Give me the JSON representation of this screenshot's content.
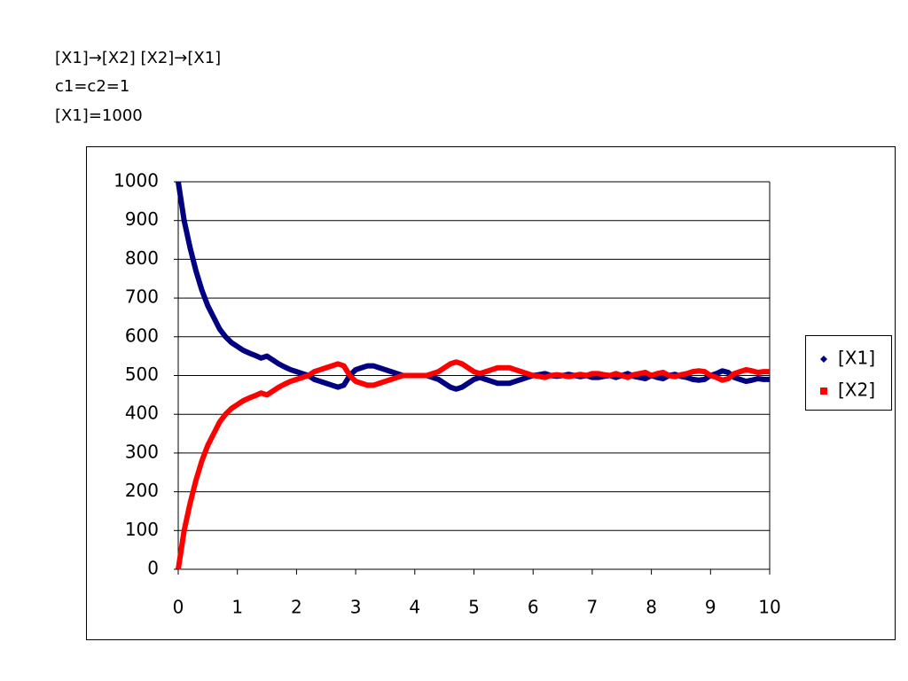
{
  "chart_data": {
    "type": "line",
    "annotations": [
      "[X1]→[X2] [X2]→[X1]",
      "c1=c2=1",
      "[X1]=1000"
    ],
    "x": [
      0,
      0.1,
      0.2,
      0.3,
      0.4,
      0.5,
      0.6,
      0.7,
      0.8,
      0.9,
      1,
      1.1,
      1.2,
      1.3,
      1.4,
      1.5,
      1.6,
      1.7,
      1.8,
      1.9,
      2,
      2.1,
      2.2,
      2.3,
      2.4,
      2.5,
      2.6,
      2.7,
      2.8,
      2.9,
      3,
      3.1,
      3.2,
      3.3,
      3.4,
      3.5,
      3.6,
      3.7,
      3.8,
      3.9,
      4,
      4.1,
      4.2,
      4.3,
      4.4,
      4.5,
      4.6,
      4.7,
      4.8,
      4.9,
      5,
      5.1,
      5.2,
      5.3,
      5.4,
      5.5,
      5.6,
      5.7,
      5.8,
      5.9,
      6,
      6.1,
      6.2,
      6.3,
      6.4,
      6.5,
      6.6,
      6.7,
      6.8,
      6.9,
      7,
      7.1,
      7.2,
      7.3,
      7.4,
      7.5,
      7.6,
      7.7,
      7.8,
      7.9,
      8,
      8.1,
      8.2,
      8.3,
      8.4,
      8.5,
      8.6,
      8.7,
      8.8,
      8.9,
      9,
      9.1,
      9.2,
      9.3,
      9.4,
      9.5,
      9.6,
      9.7,
      9.8,
      9.9,
      10
    ],
    "series": [
      {
        "name": "[X1]",
        "color": "#000080",
        "marker": "diamond",
        "values": [
          1000,
          900,
          830,
          770,
          720,
          680,
          650,
          620,
          600,
          585,
          575,
          565,
          558,
          552,
          545,
          550,
          540,
          530,
          522,
          515,
          510,
          505,
          500,
          490,
          485,
          480,
          475,
          470,
          475,
          500,
          515,
          520,
          525,
          525,
          520,
          515,
          510,
          505,
          500,
          500,
          500,
          500,
          500,
          495,
          490,
          480,
          470,
          465,
          470,
          480,
          490,
          495,
          490,
          485,
          480,
          480,
          480,
          485,
          490,
          495,
          500,
          502,
          505,
          500,
          498,
          500,
          503,
          500,
          497,
          500,
          495,
          495,
          498,
          500,
          495,
          500,
          505,
          498,
          495,
          492,
          500,
          495,
          492,
          500,
          503,
          498,
          495,
          490,
          488,
          490,
          500,
          505,
          512,
          508,
          495,
          490,
          485,
          488,
          492,
          490,
          490
        ]
      },
      {
        "name": "[X2]",
        "color": "#ff0000",
        "marker": "square",
        "values": [
          0,
          100,
          170,
          230,
          280,
          320,
          350,
          380,
          400,
          415,
          425,
          435,
          442,
          448,
          455,
          450,
          460,
          470,
          478,
          485,
          490,
          495,
          500,
          510,
          515,
          520,
          525,
          530,
          525,
          500,
          485,
          480,
          475,
          475,
          480,
          485,
          490,
          495,
          500,
          500,
          500,
          500,
          500,
          505,
          510,
          520,
          530,
          535,
          530,
          520,
          510,
          505,
          510,
          515,
          520,
          520,
          520,
          515,
          510,
          505,
          500,
          498,
          495,
          500,
          502,
          500,
          497,
          500,
          503,
          500,
          505,
          505,
          502,
          500,
          505,
          500,
          495,
          502,
          505,
          508,
          500,
          505,
          508,
          500,
          497,
          502,
          505,
          510,
          512,
          510,
          500,
          495,
          488,
          492,
          505,
          510,
          515,
          512,
          508,
          510,
          510
        ]
      }
    ],
    "xlim": [
      0,
      10
    ],
    "xticks": [
      0,
      1,
      2,
      3,
      4,
      5,
      6,
      7,
      8,
      9,
      10
    ],
    "ylim": [
      0,
      1000
    ],
    "yticks": [
      0,
      100,
      200,
      300,
      400,
      500,
      600,
      700,
      800,
      900,
      1000
    ],
    "grid": true,
    "legend": "right"
  }
}
